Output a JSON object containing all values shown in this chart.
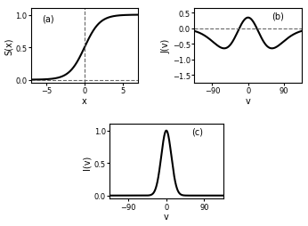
{
  "panel_a": {
    "label": "(a)",
    "ylabel": "S(x)",
    "xlabel": "x",
    "xlim": [
      -7,
      7
    ],
    "ylim": [
      -0.05,
      1.1
    ],
    "xticks": [
      -5,
      0,
      5
    ],
    "yticks": [
      0,
      0.5,
      1
    ],
    "dashed_x": 0,
    "dashed_y": 0,
    "sigmoid_beta": 1.0
  },
  "panel_b": {
    "label": "(b)",
    "ylabel": "J(v)",
    "xlabel": "v",
    "xlim": [
      -135,
      135
    ],
    "ylim": [
      -1.75,
      0.65
    ],
    "xticks": [
      -90,
      0,
      90
    ],
    "yticks": [
      0.5,
      0,
      -0.5,
      -1,
      -1.5
    ],
    "dashed_y": 0,
    "J_A": 0.35,
    "J_B": 1.65,
    "J_sigma_narrow": 45,
    "J_sigma_wide": 36
  },
  "panel_c": {
    "label": "(c)",
    "ylabel": "I(v)",
    "xlabel": "v",
    "xlim": [
      -135,
      135
    ],
    "ylim": [
      -0.05,
      1.1
    ],
    "xticks": [
      -90,
      0,
      90
    ],
    "yticks": [
      0,
      0.5,
      1
    ],
    "I_sigma": 12
  },
  "line_color": "#000000",
  "dashed_color": "#666666",
  "bg_color": "#ffffff",
  "linewidth": 1.5
}
